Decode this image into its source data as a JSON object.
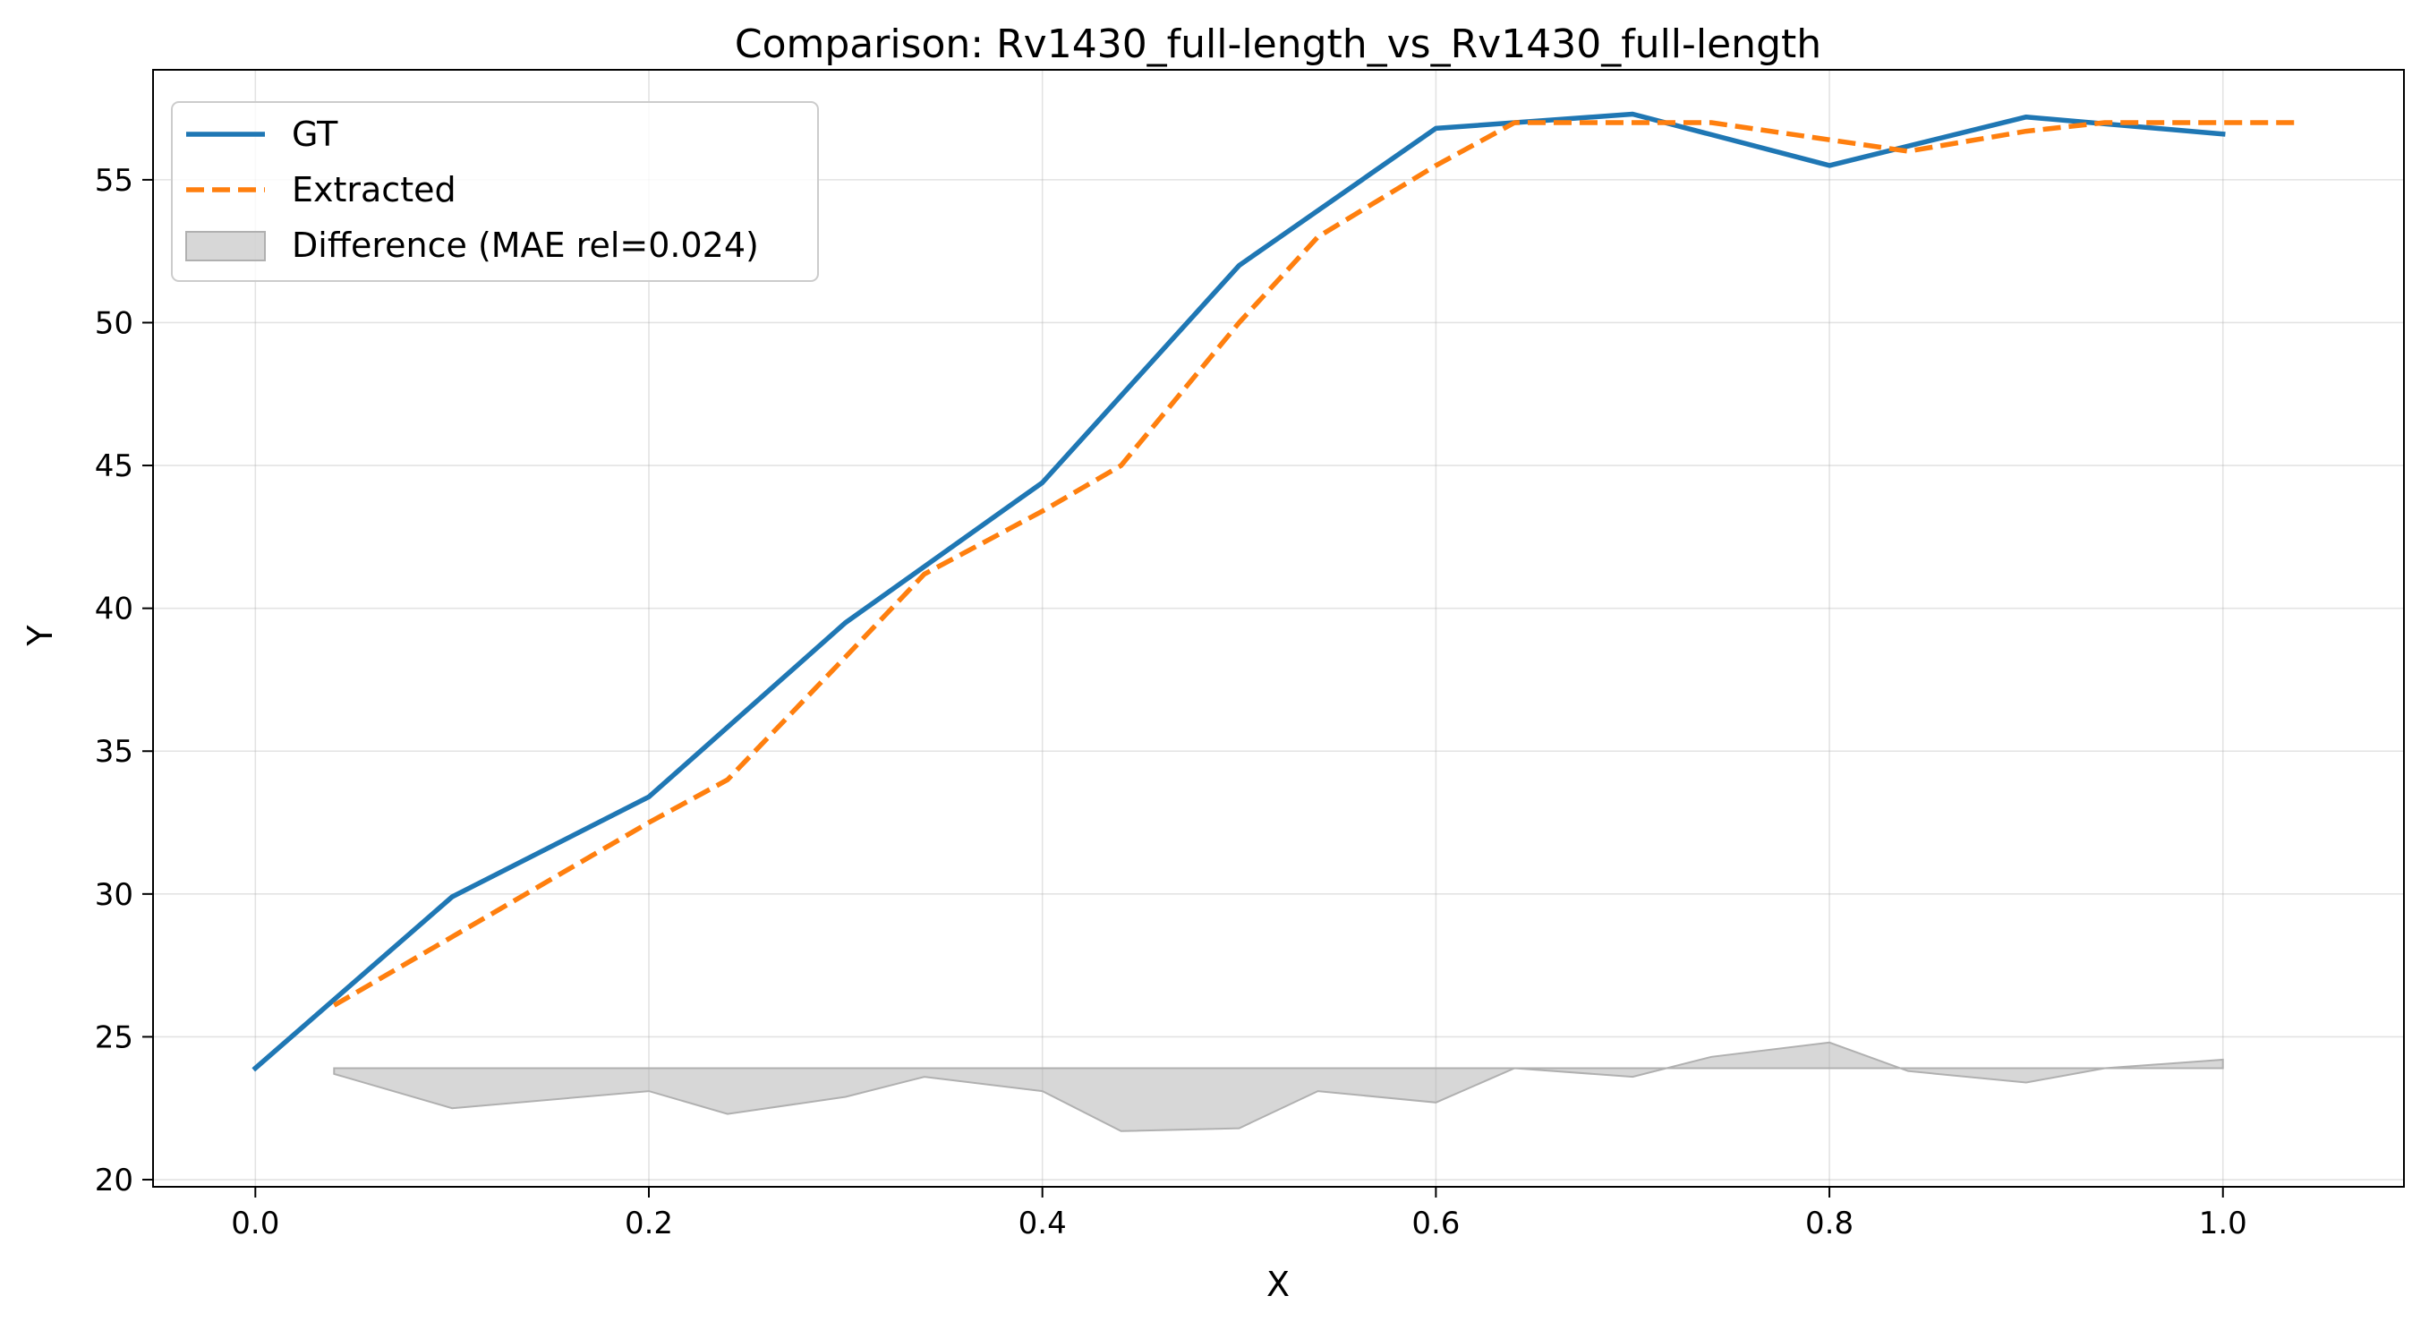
{
  "chart_data": {
    "type": "line",
    "title": "Comparison: Rv1430_full-length_vs_Rv1430_full-length",
    "xlabel": "X",
    "ylabel": "Y",
    "xlim": [
      -0.052,
      1.092
    ],
    "ylim": [
      19.75,
      58.85
    ],
    "xticks": [
      0.0,
      0.2,
      0.4,
      0.6,
      0.8,
      1.0
    ],
    "xtick_labels": [
      "0.0",
      "0.2",
      "0.4",
      "0.6",
      "0.8",
      "1.0"
    ],
    "yticks": [
      20,
      25,
      30,
      35,
      40,
      45,
      50,
      55
    ],
    "ytick_labels": [
      "20",
      "25",
      "30",
      "35",
      "40",
      "45",
      "50",
      "55"
    ],
    "grid": true,
    "legend_position": "top-left",
    "series": [
      {
        "name": "GT",
        "style": "solid",
        "color": "#1f77b4",
        "x": [
          0.0,
          0.1,
          0.2,
          0.3,
          0.4,
          0.5,
          0.6,
          0.7,
          0.8,
          0.9,
          1.0
        ],
        "y": [
          23.9,
          29.9,
          33.4,
          39.5,
          44.4,
          52.0,
          56.8,
          57.3,
          55.5,
          57.2,
          56.6
        ]
      },
      {
        "name": "Extracted",
        "style": "dashed",
        "color": "#ff7f0e",
        "x": [
          0.04,
          0.1,
          0.2,
          0.24,
          0.3,
          0.34,
          0.4,
          0.44,
          0.5,
          0.54,
          0.6,
          0.64,
          0.7,
          0.74,
          0.8,
          0.84,
          0.9,
          0.94,
          1.0,
          1.04
        ],
        "y": [
          26.1,
          28.5,
          32.5,
          34.0,
          38.3,
          41.2,
          43.4,
          45.0,
          50.0,
          53.0,
          55.5,
          57.0,
          57.0,
          57.0,
          56.4,
          56.0,
          56.7,
          57.0,
          57.0,
          57.0
        ]
      }
    ],
    "difference": {
      "name": "Difference (MAE rel=0.024)",
      "color": "#b0b0b0",
      "baseline": 23.9,
      "x": [
        0.04,
        0.1,
        0.2,
        0.24,
        0.3,
        0.34,
        0.4,
        0.44,
        0.5,
        0.54,
        0.6,
        0.64,
        0.7,
        0.74,
        0.8,
        0.84,
        0.9,
        0.94,
        1.0
      ],
      "y": [
        23.7,
        22.5,
        23.1,
        22.3,
        22.9,
        23.6,
        23.1,
        21.7,
        21.8,
        23.1,
        22.7,
        23.9,
        23.6,
        24.3,
        24.8,
        23.8,
        23.4,
        23.9,
        24.2
      ]
    }
  }
}
